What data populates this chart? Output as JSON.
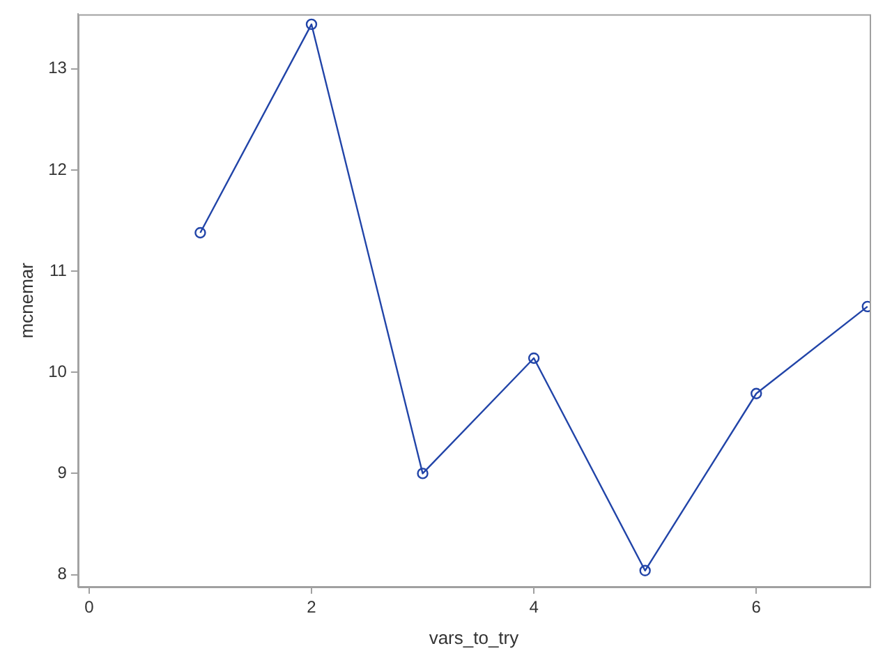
{
  "chart_data": {
    "type": "line",
    "xlabel": "vars_to_try",
    "ylabel": "mcnemar",
    "x": [
      1,
      2,
      3,
      4,
      5,
      6,
      7
    ],
    "series": [
      {
        "color": "#2144a8",
        "values": [
          11.38,
          13.44,
          9.0,
          10.14,
          8.04,
          9.79,
          10.65
        ]
      }
    ],
    "xlim": [
      -0.1,
      7.02
    ],
    "xticks": [
      0,
      2,
      4,
      6
    ],
    "ylim": [
      7.88,
      13.54
    ],
    "yticks": [
      8,
      9,
      10,
      11,
      12,
      13
    ],
    "grid": false,
    "legend": false,
    "marker": "circle",
    "line_style": "solid"
  }
}
